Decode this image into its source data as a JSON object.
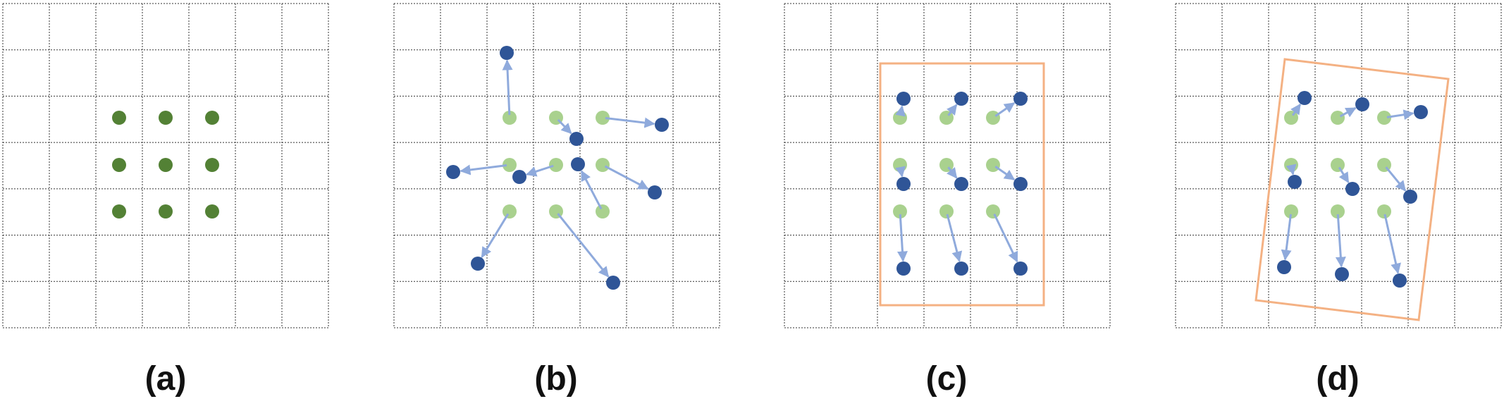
{
  "panels": [
    {
      "id": "a",
      "label": "(a)"
    },
    {
      "id": "b",
      "label": "(b)"
    },
    {
      "id": "c",
      "label": "(c)"
    },
    {
      "id": "d",
      "label": "(d)"
    }
  ],
  "colors": {
    "grid_line": "#333333",
    "original_point": "#538135",
    "faded_point": "#a9d18e",
    "moved_point": "#2f5597",
    "arrow": "#8faadc",
    "bounding_box": "#f4b183"
  }
}
